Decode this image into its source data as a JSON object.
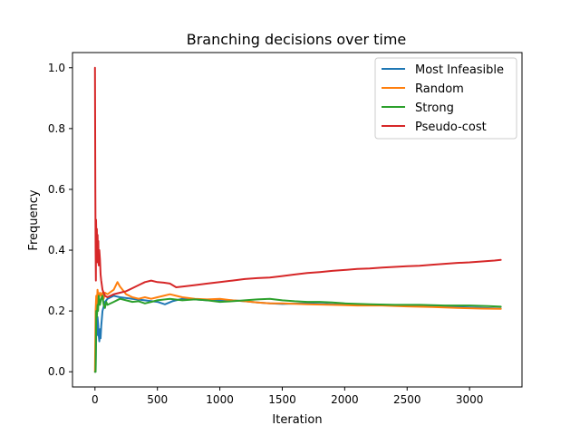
{
  "chart_data": {
    "type": "line",
    "title": "Branching decisions over time",
    "xlabel": "Iteration",
    "ylabel": "Frequency",
    "xlim": [
      -180,
      3420
    ],
    "ylim": [
      -0.05,
      1.05
    ],
    "xticks": [
      0,
      500,
      1000,
      1500,
      2000,
      2500,
      3000
    ],
    "yticks": [
      0.0,
      0.2,
      0.4,
      0.6,
      0.8,
      1.0
    ],
    "xtick_labels": [
      "0",
      "500",
      "1000",
      "1500",
      "2000",
      "2500",
      "3000"
    ],
    "ytick_labels": [
      "0.0",
      "0.2",
      "0.4",
      "0.6",
      "0.8",
      "1.0"
    ],
    "grid": false,
    "legend_position": "top-right",
    "series": [
      {
        "name": "Most Infeasible",
        "color": "#1f77b4",
        "points": [
          [
            0,
            0.0
          ],
          [
            5,
            0.0
          ],
          [
            10,
            0.15
          ],
          [
            15,
            0.12
          ],
          [
            20,
            0.18
          ],
          [
            25,
            0.16
          ],
          [
            30,
            0.12
          ],
          [
            35,
            0.1
          ],
          [
            40,
            0.14
          ],
          [
            45,
            0.11
          ],
          [
            50,
            0.15
          ],
          [
            60,
            0.2
          ],
          [
            80,
            0.23
          ],
          [
            100,
            0.24
          ],
          [
            150,
            0.25
          ],
          [
            200,
            0.245
          ],
          [
            300,
            0.24
          ],
          [
            400,
            0.235
          ],
          [
            500,
            0.23
          ],
          [
            560,
            0.222
          ],
          [
            620,
            0.232
          ],
          [
            700,
            0.24
          ],
          [
            800,
            0.238
          ],
          [
            900,
            0.235
          ],
          [
            1000,
            0.235
          ],
          [
            1100,
            0.235
          ],
          [
            1200,
            0.232
          ],
          [
            1300,
            0.228
          ],
          [
            1400,
            0.225
          ],
          [
            1500,
            0.223
          ],
          [
            1700,
            0.225
          ],
          [
            1900,
            0.222
          ],
          [
            2100,
            0.22
          ],
          [
            2300,
            0.22
          ],
          [
            2500,
            0.218
          ],
          [
            2700,
            0.216
          ],
          [
            2900,
            0.213
          ],
          [
            3100,
            0.21
          ],
          [
            3250,
            0.208
          ]
        ]
      },
      {
        "name": "Random",
        "color": "#ff7f0e",
        "points": [
          [
            0,
            0.0
          ],
          [
            5,
            0.2
          ],
          [
            10,
            0.25
          ],
          [
            15,
            0.22
          ],
          [
            20,
            0.27
          ],
          [
            30,
            0.24
          ],
          [
            40,
            0.26
          ],
          [
            50,
            0.25
          ],
          [
            60,
            0.26
          ],
          [
            70,
            0.24
          ],
          [
            80,
            0.26
          ],
          [
            100,
            0.255
          ],
          [
            150,
            0.27
          ],
          [
            180,
            0.295
          ],
          [
            200,
            0.28
          ],
          [
            250,
            0.255
          ],
          [
            300,
            0.245
          ],
          [
            350,
            0.24
          ],
          [
            400,
            0.245
          ],
          [
            450,
            0.24
          ],
          [
            500,
            0.245
          ],
          [
            550,
            0.25
          ],
          [
            600,
            0.255
          ],
          [
            650,
            0.25
          ],
          [
            700,
            0.245
          ],
          [
            800,
            0.24
          ],
          [
            900,
            0.238
          ],
          [
            1000,
            0.24
          ],
          [
            1100,
            0.235
          ],
          [
            1200,
            0.232
          ],
          [
            1300,
            0.228
          ],
          [
            1400,
            0.225
          ],
          [
            1500,
            0.225
          ],
          [
            1700,
            0.222
          ],
          [
            1900,
            0.22
          ],
          [
            2100,
            0.218
          ],
          [
            2300,
            0.218
          ],
          [
            2500,
            0.215
          ],
          [
            2700,
            0.213
          ],
          [
            2900,
            0.21
          ],
          [
            3100,
            0.208
          ],
          [
            3250,
            0.207
          ]
        ]
      },
      {
        "name": "Strong",
        "color": "#2ca02c",
        "points": [
          [
            0,
            0.0
          ],
          [
            5,
            0.0
          ],
          [
            10,
            0.2
          ],
          [
            15,
            0.18
          ],
          [
            20,
            0.22
          ],
          [
            25,
            0.2
          ],
          [
            30,
            0.25
          ],
          [
            40,
            0.22
          ],
          [
            50,
            0.24
          ],
          [
            60,
            0.25
          ],
          [
            70,
            0.22
          ],
          [
            80,
            0.21
          ],
          [
            90,
            0.23
          ],
          [
            100,
            0.22
          ],
          [
            150,
            0.23
          ],
          [
            200,
            0.24
          ],
          [
            250,
            0.235
          ],
          [
            300,
            0.23
          ],
          [
            350,
            0.232
          ],
          [
            400,
            0.225
          ],
          [
            450,
            0.23
          ],
          [
            500,
            0.235
          ],
          [
            600,
            0.24
          ],
          [
            700,
            0.235
          ],
          [
            800,
            0.238
          ],
          [
            900,
            0.235
          ],
          [
            1000,
            0.23
          ],
          [
            1100,
            0.232
          ],
          [
            1200,
            0.235
          ],
          [
            1300,
            0.238
          ],
          [
            1400,
            0.24
          ],
          [
            1500,
            0.235
          ],
          [
            1600,
            0.232
          ],
          [
            1700,
            0.23
          ],
          [
            1800,
            0.23
          ],
          [
            1900,
            0.228
          ],
          [
            2000,
            0.225
          ],
          [
            2200,
            0.222
          ],
          [
            2400,
            0.22
          ],
          [
            2600,
            0.22
          ],
          [
            2800,
            0.218
          ],
          [
            3000,
            0.218
          ],
          [
            3150,
            0.216
          ],
          [
            3250,
            0.214
          ]
        ]
      },
      {
        "name": "Pseudo-cost",
        "color": "#d62728",
        "points": [
          [
            0,
            1.0
          ],
          [
            3,
            0.6
          ],
          [
            5,
            0.4
          ],
          [
            7,
            0.3
          ],
          [
            9,
            0.5
          ],
          [
            12,
            0.4
          ],
          [
            15,
            0.47
          ],
          [
            18,
            0.36
          ],
          [
            21,
            0.45
          ],
          [
            24,
            0.38
          ],
          [
            27,
            0.43
          ],
          [
            30,
            0.35
          ],
          [
            35,
            0.4
          ],
          [
            40,
            0.37
          ],
          [
            45,
            0.32
          ],
          [
            50,
            0.3
          ],
          [
            60,
            0.27
          ],
          [
            70,
            0.26
          ],
          [
            80,
            0.25
          ],
          [
            100,
            0.245
          ],
          [
            150,
            0.255
          ],
          [
            200,
            0.26
          ],
          [
            250,
            0.265
          ],
          [
            300,
            0.275
          ],
          [
            350,
            0.285
          ],
          [
            400,
            0.295
          ],
          [
            450,
            0.3
          ],
          [
            500,
            0.295
          ],
          [
            550,
            0.293
          ],
          [
            600,
            0.29
          ],
          [
            650,
            0.278
          ],
          [
            700,
            0.28
          ],
          [
            800,
            0.285
          ],
          [
            900,
            0.29
          ],
          [
            1000,
            0.295
          ],
          [
            1100,
            0.3
          ],
          [
            1200,
            0.305
          ],
          [
            1300,
            0.308
          ],
          [
            1400,
            0.31
          ],
          [
            1500,
            0.315
          ],
          [
            1600,
            0.32
          ],
          [
            1700,
            0.325
          ],
          [
            1800,
            0.328
          ],
          [
            1900,
            0.332
          ],
          [
            2000,
            0.335
          ],
          [
            2100,
            0.338
          ],
          [
            2200,
            0.34
          ],
          [
            2300,
            0.343
          ],
          [
            2400,
            0.345
          ],
          [
            2500,
            0.347
          ],
          [
            2600,
            0.349
          ],
          [
            2700,
            0.352
          ],
          [
            2800,
            0.355
          ],
          [
            2900,
            0.358
          ],
          [
            3000,
            0.36
          ],
          [
            3100,
            0.363
          ],
          [
            3200,
            0.366
          ],
          [
            3250,
            0.368
          ]
        ]
      }
    ]
  }
}
